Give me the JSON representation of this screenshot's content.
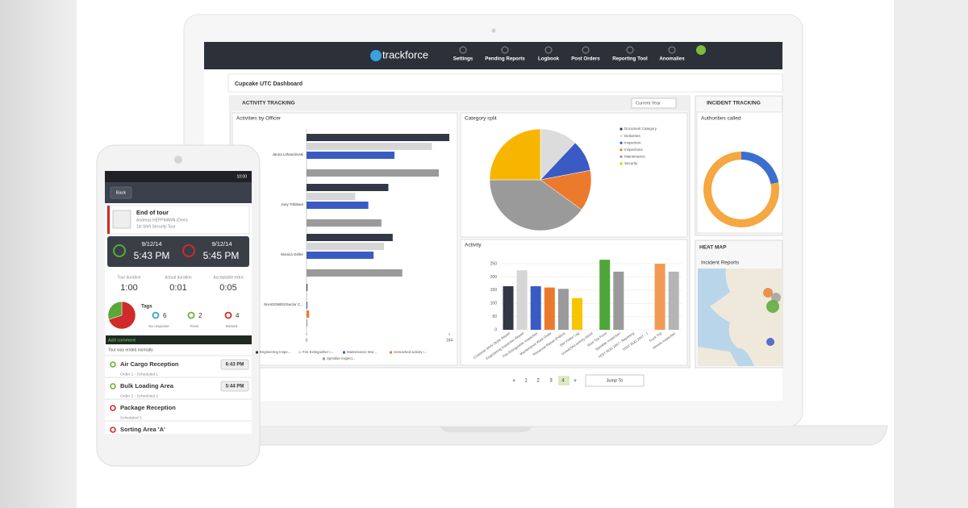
{
  "nav": {
    "brand": "trackforce",
    "items": [
      "Settings",
      "Pending Reports",
      "Logbook",
      "Post Orders",
      "Reporting Tool",
      "Anomalies"
    ]
  },
  "dashboard": {
    "title": "Cupcake UTC Dashboard",
    "activity_tracking": "ACTIVITY TRACKING",
    "period": "Current Year",
    "incident_tracking": "INCIDENT TRACKING",
    "heat_map": "HEAT MAP",
    "incident_reports": "Incident Reports"
  },
  "pagination": {
    "prev": "«",
    "pages": [
      "1",
      "2",
      "3",
      "4"
    ],
    "next": "»",
    "jump": "Jump To"
  },
  "phone": {
    "time": "10:00",
    "back": "Back",
    "card": {
      "title": "End of tour",
      "person": "Andreas HEPPMANN (Dem)",
      "tour": "1st Shift Security Tour"
    },
    "start": {
      "date": "9/12/14",
      "time": "5:43 PM"
    },
    "end": {
      "date": "9/12/14",
      "time": "5:45 PM"
    },
    "stats": [
      {
        "label": "Tour duration",
        "value": "1:00"
      },
      {
        "label": "Actual duration",
        "value": "0:01"
      },
      {
        "label": "Acceptable extra",
        "value": "0:05"
      }
    ],
    "tags": {
      "title": "Tags",
      "items": [
        {
          "count": "6",
          "label": "No response"
        },
        {
          "count": "2",
          "label": "Fixes"
        },
        {
          "count": "4",
          "label": "Missed"
        }
      ]
    },
    "comment": "Add comment",
    "status": "Tour was ended normally",
    "list": [
      {
        "title": "Air Cargo Reception",
        "sub": "Order 1 - Scheduled 1",
        "time": "6:43 PM"
      },
      {
        "title": "Bulk Loading Area",
        "sub": "Order 2 - Scheduled 2",
        "time": "5:44 PM"
      },
      {
        "title": "Package Reception",
        "sub": "Scheduled 3"
      },
      {
        "title": "Sorting Area 'A'"
      }
    ]
  },
  "chart_data": [
    {
      "type": "hbar",
      "title": "Activities by Officer",
      "categories": [
        "Janna Lithandovski",
        "Joey Tribbiani",
        "Monica Geller",
        "SHADOWED/Sector C..."
      ],
      "series": [
        {
          "name": "Engineering Inspe...",
          "color": "#323846",
          "values": [
            164,
            94,
            99,
            1
          ]
        },
        {
          "name": "Fire Extinguisher I...",
          "color": "#d6d6d6",
          "values": [
            144,
            56,
            89,
            1
          ]
        },
        {
          "name": "Maintenance Wor...",
          "color": "#3a5bc4",
          "values": [
            101,
            71,
            77,
            1
          ]
        },
        {
          "name": "Unreached activity r...",
          "color": "#ec7a2c",
          "values": [
            0,
            0,
            0,
            3
          ]
        },
        {
          "name": "Sprinkler inspect...",
          "color": "#9a9a9a",
          "values": [
            152,
            86,
            110,
            1
          ]
        }
      ],
      "xlim": [
        0,
        164
      ],
      "xticks": [
        0,
        164
      ]
    },
    {
      "type": "pie",
      "title": "Category split",
      "categories": [
        "Document Category",
        "Deliveries",
        "Inspection",
        "Inspections",
        "Maintenance",
        "Security"
      ],
      "values": [
        0,
        12,
        10,
        13,
        40,
        25
      ],
      "colors": [
        "#323846",
        "#dcdcdc",
        "#3a5bc4",
        "#ec7a2c",
        "#9a9a9a",
        "#f7b500"
      ]
    },
    {
      "type": "donut",
      "title": "Authorities called",
      "values": [
        22,
        78
      ],
      "colors": [
        "#3a6fd0",
        "#f5a742"
      ]
    },
    {
      "type": "bar",
      "title": "Activity",
      "categories": [
        "Customer Work Order Report",
        "Engineering Inspection Report",
        "Fire Extinguisher Inspection",
        "Maintenance Work Order",
        "Personnel Report (Police)",
        "Site Visitor Log",
        "Unreached activity report",
        "Root Trip Form",
        "Sprinkler Inspection",
        "TEST BUG 2047 - Reporting",
        "TEST BUG 2047 - 1",
        "Truck Trip",
        "Vehicle Inspection"
      ],
      "values": [
        165,
        225,
        165,
        160,
        155,
        120,
        0,
        265,
        220,
        0,
        0,
        250,
        220
      ],
      "colors": [
        "#323846",
        "#d6d6d6",
        "#3a5bc4",
        "#ec7a2c",
        "#9a9a9a",
        "#f7c400",
        "#5a9fd6",
        "#4ea63a",
        "#9a9a9a",
        "#323846",
        "#5a9fd6",
        "#f29a55",
        "#b5b5b5"
      ],
      "ylim": [
        0,
        270
      ],
      "yticks": [
        0,
        50,
        100,
        150,
        200,
        250
      ]
    },
    {
      "type": "pie",
      "values": [
        70,
        30
      ],
      "colors": [
        "#d02a2a",
        "#5aa838"
      ]
    }
  ]
}
